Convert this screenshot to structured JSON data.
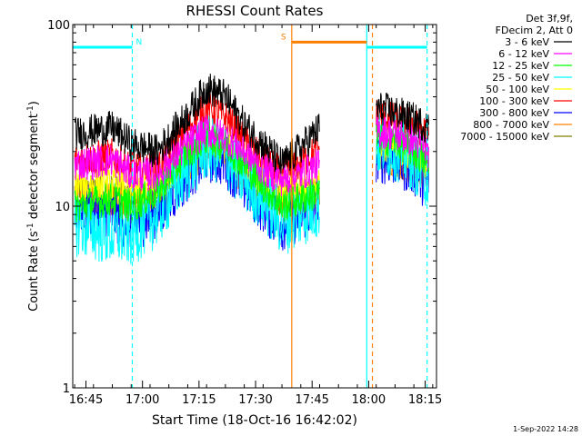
{
  "chart_data": {
    "type": "line",
    "title": "RHESSI Count Rates",
    "xlabel": "Start Time (18-Oct-16 16:42:02)",
    "ylabel_main": "Count Rate (s",
    "ylabel_sup1": "-1",
    "ylabel_mid": " detector segment",
    "ylabel_sup2": "-1",
    "ylabel_end": ")",
    "yscale": "log",
    "ylim": [
      1,
      100
    ],
    "xlim_minutes": [
      -0.5,
      96
    ],
    "x_ticks": [
      {
        "min": 3,
        "label": "16:45"
      },
      {
        "min": 18,
        "label": "17:00"
      },
      {
        "min": 33,
        "label": "17:15"
      },
      {
        "min": 48,
        "label": "17:30"
      },
      {
        "min": 63,
        "label": "17:45"
      },
      {
        "min": 78,
        "label": "18:00"
      },
      {
        "min": 93,
        "label": "18:15"
      }
    ],
    "y_ticks": [
      {
        "value": 1,
        "label": "1"
      },
      {
        "value": 10,
        "label": "10"
      },
      {
        "value": 100,
        "label": "100"
      }
    ],
    "legend_header": [
      "Det 3f,9f,",
      "FDecim 2, Att 0"
    ],
    "legend_position": "top-right outside",
    "timestamp": "1-Sep-2022 14:28",
    "flags": [
      {
        "label": "N",
        "color": "#00ffff",
        "start": -0.5,
        "end": 15.3,
        "level": 75
      },
      {
        "label": "S",
        "color": "#ff8000",
        "start": 57.6,
        "end": 77.5,
        "level": 80
      },
      {
        "label": "",
        "color": "#00ffff",
        "start": 77.5,
        "end": 93.5,
        "level": 75
      }
    ],
    "vlines": [
      {
        "min": 15.3,
        "color": "#00ffff",
        "style": "dashed"
      },
      {
        "min": 57.6,
        "color": "#ff8000",
        "style": "solid"
      },
      {
        "min": 77.5,
        "color": "#00ffff",
        "style": "solid"
      },
      {
        "min": 79.0,
        "color": "#ff8000",
        "style": "dashed"
      },
      {
        "min": 93.5,
        "color": "#00ffff",
        "style": "dashed"
      }
    ],
    "data_segments": [
      [
        0,
        65
      ],
      [
        80,
        94
      ]
    ],
    "series": [
      {
        "name": "3 - 6 keV",
        "color": "#000000",
        "x": [
          0,
          10,
          15,
          22,
          30,
          35,
          40,
          45,
          50,
          55,
          60,
          65,
          80,
          85,
          90,
          94
        ],
        "y": [
          25,
          27,
          22,
          20,
          32,
          45,
          40,
          28,
          22,
          17,
          21,
          27,
          35,
          33,
          30,
          27
        ]
      },
      {
        "name": "6 - 12 keV",
        "color": "#ff00ff",
        "x": [
          0,
          10,
          15,
          22,
          30,
          35,
          40,
          45,
          50,
          55,
          60,
          65,
          80,
          85,
          90,
          94
        ],
        "y": [
          17,
          18,
          15,
          15,
          22,
          26,
          24,
          20,
          16,
          14,
          15,
          17,
          26,
          25,
          23,
          20
        ]
      },
      {
        "name": "12 - 25 keV",
        "color": "#00ff00",
        "x": [
          0,
          10,
          15,
          22,
          30,
          35,
          40,
          45,
          50,
          55,
          60,
          65,
          80,
          85,
          90,
          94
        ],
        "y": [
          10,
          11,
          10,
          12,
          20,
          24,
          22,
          17,
          13,
          10,
          11,
          12,
          24,
          23,
          20,
          17
        ]
      },
      {
        "name": "25 - 50 keV",
        "color": "#00ffff",
        "x": [
          0,
          10,
          15,
          22,
          30,
          35,
          40,
          45,
          50,
          55,
          60,
          65,
          80,
          85,
          90,
          94
        ],
        "y": [
          8,
          7,
          7,
          9,
          16,
          21,
          19,
          14,
          11,
          8,
          9,
          10,
          22,
          21,
          18,
          14
        ]
      },
      {
        "name": "50 - 100 keV",
        "color": "#ffff00",
        "x": [
          0,
          10,
          15,
          22,
          30,
          35,
          40,
          45,
          50,
          55,
          60,
          65,
          80,
          85,
          90,
          94
        ],
        "y": [
          13,
          13,
          12,
          13,
          19,
          23,
          21,
          17,
          14,
          12,
          12,
          13,
          22,
          21,
          19,
          17
        ]
      },
      {
        "name": "100 - 300 keV",
        "color": "#ff0000",
        "x": [
          0,
          10,
          15,
          22,
          30,
          35,
          40,
          45,
          50,
          55,
          60,
          65,
          80,
          85,
          90,
          94
        ],
        "y": [
          18,
          19,
          16,
          16,
          27,
          35,
          31,
          23,
          18,
          15,
          17,
          21,
          32,
          30,
          28,
          25
        ]
      },
      {
        "name": "300 - 800 keV",
        "color": "#0000ff",
        "x": [
          0,
          10,
          15,
          22,
          30,
          35,
          40,
          45,
          50,
          55,
          60,
          65,
          80,
          85,
          90,
          94
        ],
        "y": [
          10,
          9,
          8,
          9,
          15,
          19,
          18,
          13,
          10,
          8,
          9,
          10,
          19,
          18,
          16,
          13
        ]
      },
      {
        "name": "800 - 7000 keV",
        "color": "#ff8000",
        "x": [
          0,
          10,
          15,
          22,
          30,
          35,
          40,
          45,
          50,
          55,
          60,
          65,
          80,
          85,
          90,
          94
        ],
        "y": [
          11,
          11,
          10,
          11,
          16,
          20,
          19,
          14,
          12,
          10,
          11,
          12,
          19,
          18,
          16,
          14
        ]
      },
      {
        "name": "7000 - 15000 keV",
        "color": "#808000",
        "x": [
          0,
          10,
          15,
          22,
          30,
          35,
          40,
          45,
          50,
          55,
          60,
          65,
          80,
          85,
          90,
          94
        ],
        "y": [
          12,
          12,
          11,
          12,
          17,
          21,
          20,
          15,
          12,
          11,
          11,
          12,
          20,
          19,
          17,
          15
        ]
      }
    ]
  }
}
